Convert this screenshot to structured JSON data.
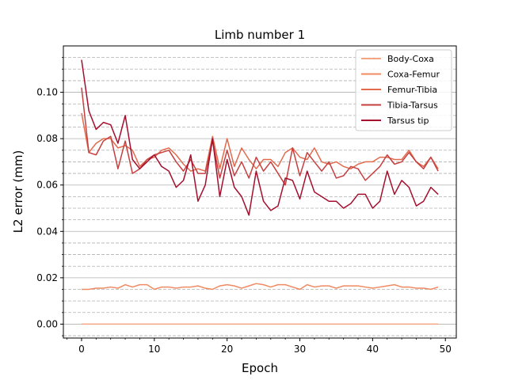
{
  "chart_data": {
    "type": "line",
    "title": "Limb number 1",
    "xlabel": "Epoch",
    "ylabel": "L2 error (mm)",
    "xlim": [
      -2.5,
      51.5
    ],
    "ylim": [
      -0.006,
      0.12
    ],
    "xticks": [
      0,
      10,
      20,
      30,
      40,
      50
    ],
    "yticks": [
      0.0,
      0.02,
      0.04,
      0.06,
      0.08,
      0.1
    ],
    "ytick_labels": [
      "0.00",
      "0.02",
      "0.04",
      "0.06",
      "0.08",
      "0.10"
    ],
    "grid": {
      "major_y": true,
      "minor_y_dashed": true,
      "x": false
    },
    "legend_position": "top-right",
    "series": [
      {
        "name": "Body-Coxa",
        "color": "#f4a582",
        "values": [
          0,
          0,
          0,
          0,
          0,
          0,
          0,
          0,
          0,
          0,
          0,
          0,
          0,
          0,
          0,
          0,
          0,
          0,
          0,
          0,
          0,
          0,
          0,
          0,
          0,
          0,
          0,
          0,
          0,
          0,
          0,
          0,
          0,
          0,
          0,
          0,
          0,
          0,
          0,
          0,
          0,
          0,
          0,
          0,
          0,
          0,
          0,
          0,
          0,
          0
        ]
      },
      {
        "name": "Coxa-Femur",
        "color": "#ef8a62",
        "values": [
          0.015,
          0.015,
          0.0155,
          0.0155,
          0.016,
          0.0155,
          0.017,
          0.016,
          0.017,
          0.017,
          0.015,
          0.016,
          0.016,
          0.0155,
          0.016,
          0.016,
          0.0165,
          0.0155,
          0.015,
          0.0165,
          0.017,
          0.0165,
          0.0155,
          0.0165,
          0.0175,
          0.017,
          0.016,
          0.017,
          0.017,
          0.016,
          0.015,
          0.017,
          0.016,
          0.0165,
          0.0165,
          0.0155,
          0.0165,
          0.0165,
          0.0165,
          0.016,
          0.0155,
          0.016,
          0.0165,
          0.017,
          0.016,
          0.016,
          0.0155,
          0.0155,
          0.015,
          0.016
        ]
      },
      {
        "name": "Femur-Tibia",
        "color": "#e26a4d",
        "values": [
          0.091,
          0.074,
          0.078,
          0.08,
          0.08,
          0.076,
          0.077,
          0.075,
          0.068,
          0.071,
          0.072,
          0.075,
          0.076,
          0.073,
          0.069,
          0.066,
          0.067,
          0.066,
          0.081,
          0.067,
          0.08,
          0.068,
          0.076,
          0.071,
          0.067,
          0.071,
          0.071,
          0.068,
          0.074,
          0.076,
          0.072,
          0.071,
          0.076,
          0.07,
          0.069,
          0.07,
          0.068,
          0.067,
          0.069,
          0.07,
          0.07,
          0.072,
          0.072,
          0.071,
          0.071,
          0.075,
          0.07,
          0.068,
          0.072,
          0.067
        ]
      },
      {
        "name": "Tibia-Tarsus",
        "color": "#c64040",
        "values": [
          0.102,
          0.074,
          0.073,
          0.079,
          0.081,
          0.067,
          0.079,
          0.065,
          0.067,
          0.071,
          0.073,
          0.074,
          0.075,
          0.07,
          0.066,
          0.071,
          0.065,
          0.065,
          0.079,
          0.063,
          0.075,
          0.064,
          0.07,
          0.063,
          0.072,
          0.066,
          0.07,
          0.065,
          0.06,
          0.076,
          0.064,
          0.074,
          0.07,
          0.066,
          0.07,
          0.063,
          0.064,
          0.068,
          0.067,
          0.062,
          0.065,
          0.068,
          0.073,
          0.069,
          0.07,
          0.074,
          0.07,
          0.067,
          0.072,
          0.066
        ]
      },
      {
        "name": "Tarsus tip",
        "color": "#a50f2d",
        "values": [
          0.114,
          0.092,
          0.084,
          0.087,
          0.086,
          0.078,
          0.09,
          0.071,
          0.067,
          0.07,
          0.073,
          0.068,
          0.066,
          0.059,
          0.062,
          0.073,
          0.053,
          0.06,
          0.08,
          0.055,
          0.071,
          0.059,
          0.055,
          0.047,
          0.066,
          0.053,
          0.049,
          0.051,
          0.063,
          0.062,
          0.054,
          0.066,
          0.057,
          0.055,
          0.053,
          0.053,
          0.05,
          0.052,
          0.056,
          0.056,
          0.05,
          0.053,
          0.066,
          0.056,
          0.062,
          0.059,
          0.051,
          0.053,
          0.059,
          0.056
        ]
      }
    ]
  }
}
